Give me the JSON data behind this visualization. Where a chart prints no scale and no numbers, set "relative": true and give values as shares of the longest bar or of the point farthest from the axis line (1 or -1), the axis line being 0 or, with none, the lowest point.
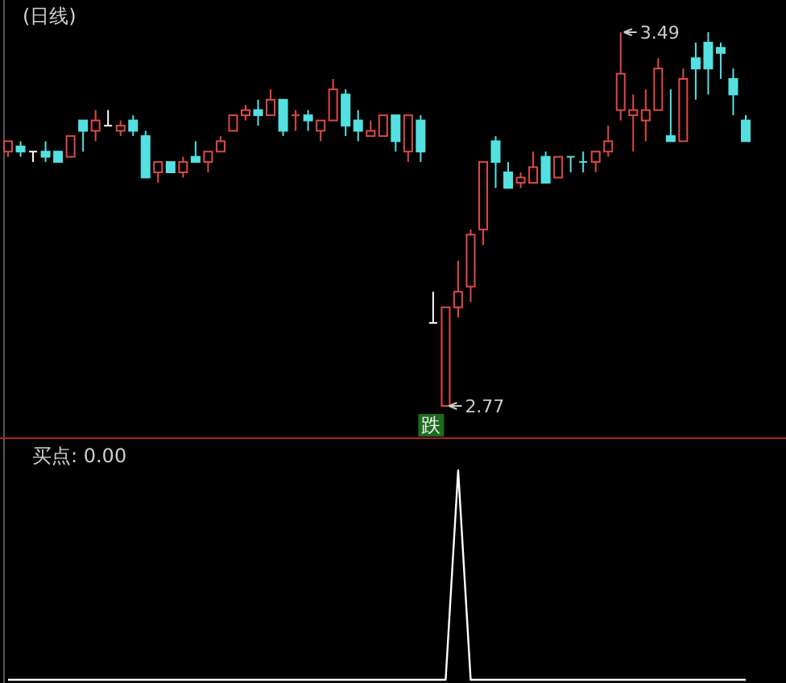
{
  "chart_data": [
    {
      "type": "candlestick",
      "title": "(日线)",
      "categories": [
        null,
        null,
        null,
        null,
        null,
        null,
        null,
        null,
        null,
        null,
        null,
        null,
        null,
        null,
        null,
        null,
        null,
        null,
        null,
        null,
        null,
        null,
        null,
        null,
        null,
        null,
        null,
        null,
        null,
        null,
        null,
        null,
        null,
        null,
        null,
        null,
        null,
        null,
        null,
        null,
        null,
        null,
        null,
        null,
        null,
        null,
        null,
        null,
        null,
        null,
        null,
        null,
        null,
        null,
        null,
        null,
        null,
        null,
        null,
        null
      ],
      "ohlc": [
        [
          3.26,
          3.28,
          3.25,
          3.28
        ],
        [
          3.27,
          3.28,
          3.25,
          3.26
        ],
        [
          3.26,
          3.26,
          3.24,
          3.26
        ],
        [
          3.26,
          3.28,
          3.24,
          3.25
        ],
        [
          3.26,
          3.26,
          3.24,
          3.24
        ],
        [
          3.25,
          3.29,
          3.25,
          3.29
        ],
        [
          3.32,
          3.32,
          3.26,
          3.3
        ],
        [
          3.3,
          3.34,
          3.28,
          3.32
        ],
        [
          3.31,
          3.34,
          3.31,
          3.31
        ],
        [
          3.3,
          3.32,
          3.29,
          3.31
        ],
        [
          3.32,
          3.33,
          3.29,
          3.3
        ],
        [
          3.29,
          3.3,
          3.21,
          3.21
        ],
        [
          3.22,
          3.24,
          3.2,
          3.24
        ],
        [
          3.24,
          3.24,
          3.22,
          3.22
        ],
        [
          3.22,
          3.25,
          3.21,
          3.24
        ],
        [
          3.25,
          3.28,
          3.24,
          3.24
        ],
        [
          3.24,
          3.26,
          3.22,
          3.26
        ],
        [
          3.26,
          3.29,
          3.26,
          3.28
        ],
        [
          3.3,
          3.33,
          3.3,
          3.33
        ],
        [
          3.33,
          3.35,
          3.32,
          3.34
        ],
        [
          3.34,
          3.36,
          3.31,
          3.33
        ],
        [
          3.33,
          3.38,
          3.33,
          3.36
        ],
        [
          3.36,
          3.36,
          3.29,
          3.3
        ],
        [
          3.33,
          3.34,
          3.3,
          3.33
        ],
        [
          3.33,
          3.34,
          3.3,
          3.32
        ],
        [
          3.3,
          3.32,
          3.28,
          3.32
        ],
        [
          3.32,
          3.4,
          3.32,
          3.38
        ],
        [
          3.37,
          3.38,
          3.29,
          3.31
        ],
        [
          3.32,
          3.34,
          3.28,
          3.3
        ],
        [
          3.29,
          3.32,
          3.29,
          3.3
        ],
        [
          3.29,
          3.33,
          3.29,
          3.33
        ],
        [
          3.33,
          3.33,
          3.26,
          3.28
        ],
        [
          3.26,
          3.33,
          3.24,
          3.33
        ],
        [
          3.32,
          3.33,
          3.24,
          3.26
        ],
        [
          2.93,
          2.99,
          2.93,
          2.93
        ],
        [
          2.77,
          2.96,
          2.77,
          2.96
        ],
        [
          2.96,
          3.05,
          2.94,
          2.99
        ],
        [
          3.0,
          3.11,
          2.97,
          3.1
        ],
        [
          3.11,
          3.24,
          3.08,
          3.24
        ],
        [
          3.28,
          3.29,
          3.19,
          3.24
        ],
        [
          3.22,
          3.24,
          3.19,
          3.19
        ],
        [
          3.2,
          3.22,
          3.19,
          3.21
        ],
        [
          3.2,
          3.26,
          3.2,
          3.23
        ],
        [
          3.25,
          3.26,
          3.2,
          3.2
        ],
        [
          3.21,
          3.25,
          3.21,
          3.25
        ],
        [
          3.25,
          3.25,
          3.22,
          3.25
        ],
        [
          3.24,
          3.26,
          3.22,
          3.24
        ],
        [
          3.24,
          3.26,
          3.22,
          3.26
        ],
        [
          3.26,
          3.31,
          3.25,
          3.28
        ],
        [
          3.34,
          3.49,
          3.32,
          3.41
        ],
        [
          3.33,
          3.37,
          3.26,
          3.34
        ],
        [
          3.32,
          3.38,
          3.28,
          3.34
        ],
        [
          3.34,
          3.44,
          3.34,
          3.42
        ],
        [
          3.29,
          3.38,
          3.28,
          3.28
        ],
        [
          3.28,
          3.42,
          3.28,
          3.4
        ],
        [
          3.44,
          3.47,
          3.36,
          3.42
        ],
        [
          3.47,
          3.49,
          3.37,
          3.42
        ],
        [
          3.46,
          3.47,
          3.4,
          3.45
        ],
        [
          3.4,
          3.42,
          3.33,
          3.37
        ],
        [
          3.32,
          3.33,
          3.28,
          3.28
        ]
      ],
      "colors": [
        "#e04848",
        "#54e0e0",
        "#ffffff",
        "#54e0e0",
        "#54e0e0",
        "#e04848",
        "#54e0e0",
        "#e04848",
        "#ffffff",
        "#e04848",
        "#54e0e0",
        "#54e0e0",
        "#e04848",
        "#54e0e0",
        "#e04848",
        "#54e0e0",
        "#e04848",
        "#e04848",
        "#e04848",
        "#e04848",
        "#54e0e0",
        "#e04848",
        "#54e0e0",
        "#e04848",
        "#54e0e0",
        "#e04848",
        "#e04848",
        "#54e0e0",
        "#54e0e0",
        "#e04848",
        "#e04848",
        "#54e0e0",
        "#e04848",
        "#54e0e0",
        "#ffffff",
        "#e04848",
        "#e04848",
        "#e04848",
        "#e04848",
        "#54e0e0",
        "#54e0e0",
        "#e04848",
        "#e04848",
        "#54e0e0",
        "#e04848",
        "#54e0e0",
        "#54e0e0",
        "#e04848",
        "#e04848",
        "#e04848",
        "#e04848",
        "#e04848",
        "#e04848",
        "#54e0e0",
        "#e04848",
        "#54e0e0",
        "#54e0e0",
        "#54e0e0",
        "#54e0e0",
        "#54e0e0"
      ],
      "annotations": [
        "3.49",
        "2.77",
        "跌"
      ]
    },
    {
      "type": "line",
      "title": "买点: 0.00",
      "relative": true,
      "categories": [
        null,
        null,
        null,
        null,
        null,
        null,
        null,
        null,
        null,
        null,
        null,
        null,
        null,
        null,
        null,
        null,
        null,
        null,
        null,
        null,
        null,
        null,
        null,
        null,
        null,
        null,
        null,
        null,
        null,
        null,
        null,
        null,
        null,
        null,
        null,
        null,
        null,
        null,
        null,
        null,
        null,
        null,
        null,
        null,
        null,
        null,
        null,
        null,
        null,
        null,
        null,
        null,
        null,
        null,
        null,
        null,
        null,
        null,
        null,
        null
      ],
      "series": [
        {
          "color": "#ffffff",
          "values": [
            0,
            0,
            0,
            0,
            0,
            0,
            0,
            0,
            0,
            0,
            0,
            0,
            0,
            0,
            0,
            0,
            0,
            0,
            0,
            0,
            0,
            0,
            0,
            0,
            0,
            0,
            0,
            0,
            0,
            0,
            0,
            0,
            0,
            0,
            0,
            0,
            1,
            0,
            0,
            0,
            0,
            0,
            0,
            0,
            0,
            0,
            0,
            0,
            0,
            0,
            0,
            0,
            0,
            0,
            0,
            0,
            0,
            0,
            0,
            0
          ]
        }
      ]
    }
  ]
}
